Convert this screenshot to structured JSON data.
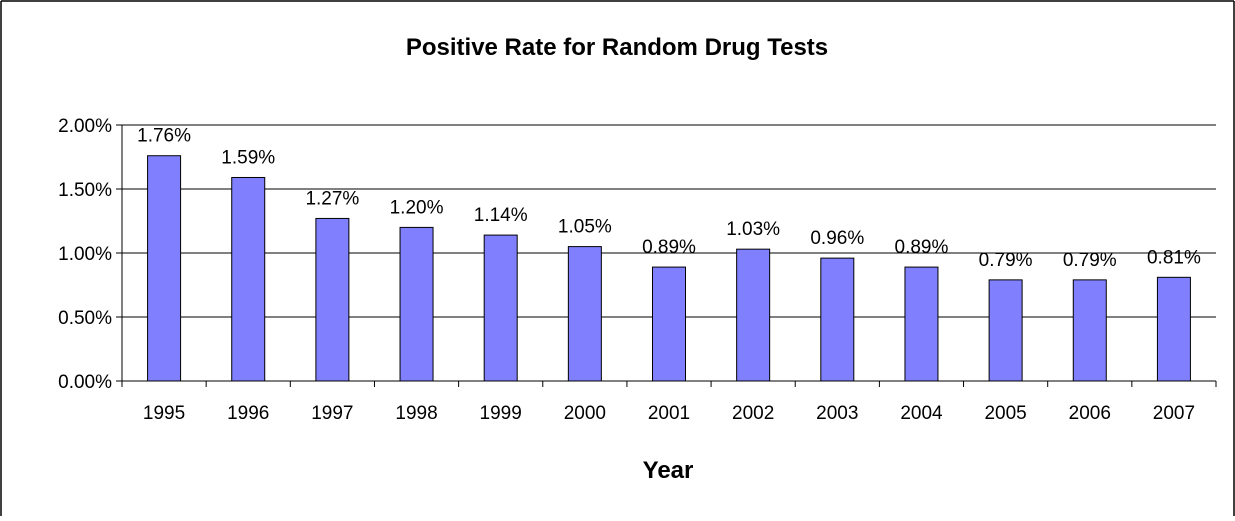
{
  "chart_data": {
    "type": "bar",
    "title": "Positive Rate for Random Drug Tests",
    "xlabel": "Year",
    "ylabel": "",
    "categories": [
      "1995",
      "1996",
      "1997",
      "1998",
      "1999",
      "2000",
      "2001",
      "2002",
      "2003",
      "2004",
      "2005",
      "2006",
      "2007"
    ],
    "values": [
      1.76,
      1.59,
      1.27,
      1.2,
      1.14,
      1.05,
      0.89,
      1.03,
      0.96,
      0.89,
      0.79,
      0.79,
      0.81
    ],
    "data_labels": [
      "1.76%",
      "1.59%",
      "1.27%",
      "1.20%",
      "1.14%",
      "1.05%",
      "0.89%",
      "1.03%",
      "0.96%",
      "0.89%",
      "0.79%",
      "0.79%",
      "0.81%"
    ],
    "value_unit": "%",
    "ylim": [
      0,
      2
    ],
    "yticks": [
      0,
      0.5,
      1.0,
      1.5,
      2.0
    ],
    "ytick_labels": [
      "0.00%",
      "0.50%",
      "1.00%",
      "1.50%",
      "2.00%"
    ],
    "grid": true,
    "legend": "none",
    "colors": {
      "bar_fill": "#8080FF",
      "bar_stroke": "#000000",
      "gridline": "#000000",
      "frame": "#000000"
    }
  }
}
